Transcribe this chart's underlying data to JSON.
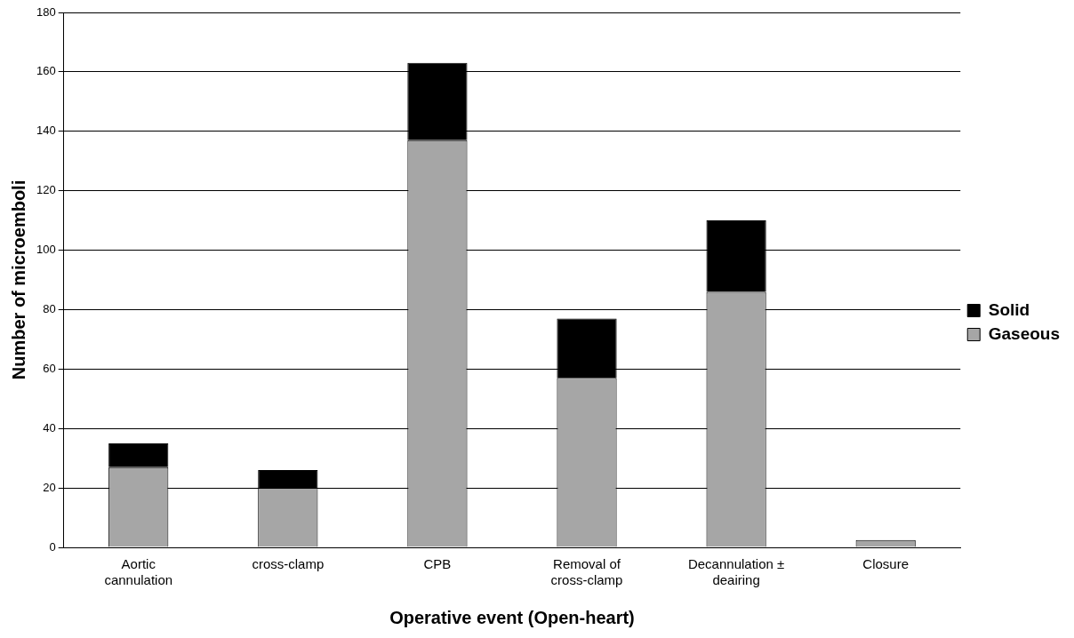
{
  "chart_data": {
    "type": "bar",
    "xlabel": "Operative event (Open-heart)",
    "ylabel": "Number of microemboli",
    "categories": [
      "Aortic cannulation",
      "cross-clamp",
      "CPB",
      "Removal of cross-clamp",
      "Decannulation ± deairing",
      "Closure"
    ],
    "stacked": true,
    "ylim": [
      0,
      180
    ],
    "yticks": [
      0,
      20,
      40,
      60,
      80,
      100,
      120,
      140,
      160,
      180
    ],
    "grid": "y",
    "legend": "right",
    "series": [
      {
        "name": "Gaseous",
        "color": "#a6a6a6",
        "values": [
          27,
          20,
          137,
          57,
          86,
          2.5
        ]
      },
      {
        "name": "Solid",
        "color": "#000000",
        "values": [
          8,
          6,
          26,
          20,
          24,
          0
        ]
      }
    ]
  }
}
